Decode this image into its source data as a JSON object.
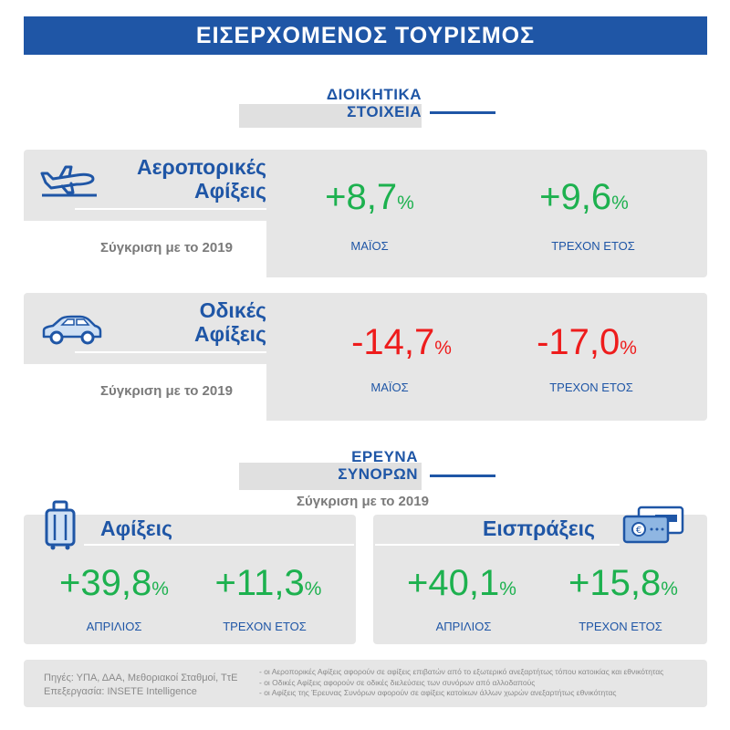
{
  "header": {
    "title": "ΕΙΣΕΡΧΟΜΕΝΟΣ ΤΟΥΡΙΣΜΟΣ"
  },
  "admin_section": {
    "line1": "ΔΙΟΙΚΗΤΙΚΑ",
    "line2": "ΣΤΟΙΧΕΙΑ"
  },
  "air": {
    "title_line1": "Αεροπορικές",
    "title_line2": "Αφίξεις",
    "compare": "Σύγκριση με το 2019",
    "icon": "airplane-icon",
    "stat1": {
      "value": "+8,7",
      "unit": "%",
      "label": "ΜΑΪΟΣ"
    },
    "stat2": {
      "value": "+9,6",
      "unit": "%",
      "label": "ΤΡΕΧΟΝ ΕΤΟΣ"
    }
  },
  "road": {
    "title_line1": "Οδικές",
    "title_line2": "Αφίξεις",
    "compare": "Σύγκριση με το 2019",
    "icon": "car-icon",
    "stat1": {
      "value": "-14,7",
      "unit": "%",
      "label": "ΜΑΪΟΣ"
    },
    "stat2": {
      "value": "-17,0",
      "unit": "%",
      "label": "ΤΡΕΧΟΝ ΕΤΟΣ"
    }
  },
  "survey_section": {
    "line1": "ΕΡΕΥΝΑ",
    "line2": "ΣΥΝΟΡΩΝ",
    "compare": "Σύγκριση με το 2019"
  },
  "arrivals": {
    "title": "Αφίξεις",
    "icon": "luggage-icon",
    "stat1": {
      "value": "+39,8",
      "unit": "%",
      "label": "ΑΠΡΙΛΙΟΣ"
    },
    "stat2": {
      "value": "+11,3",
      "unit": "%",
      "label": "ΤΡΕΧΟΝ ΕΤΟΣ"
    }
  },
  "receipts": {
    "title": "Εισπράξεις",
    "icon": "payment-card-icon",
    "stat1": {
      "value": "+40,1",
      "unit": "%",
      "label": "ΑΠΡΙΛΙΟΣ"
    },
    "stat2": {
      "value": "+15,8",
      "unit": "%",
      "label": "ΤΡΕΧΟΝ ΕΤΟΣ"
    }
  },
  "footer": {
    "sources": "Πηγές:  ΥΠΑ, ΔΑΑ, Μεθοριακοί Σταθμοί, ΤτΕ",
    "processing": "Επεξεργασία:  INSETE Intelligence",
    "note1": "- οι Αεροπορικές Αφίξεις αφορούν σε αφίξεις επιβατών από το εξωτερικό ανεξαρτήτως τόπου κατοικίας και εθνικότητας",
    "note2": "- οι Οδικές Αφίξεις αφορούν σε οδικές διελεύσεις των συνόρων από αλλοδαπούς",
    "note3": "- οι Αφίξεις της Έρευνας Συνόρων αφορούν σε αφίξεις κατοίκων άλλων χωρών ανεξαρτήτως εθνικότητας"
  },
  "colors": {
    "brand_blue": "#1f56a6",
    "positive": "#1db14f",
    "negative": "#ee1c1c",
    "panel": "#e6e6e6"
  }
}
